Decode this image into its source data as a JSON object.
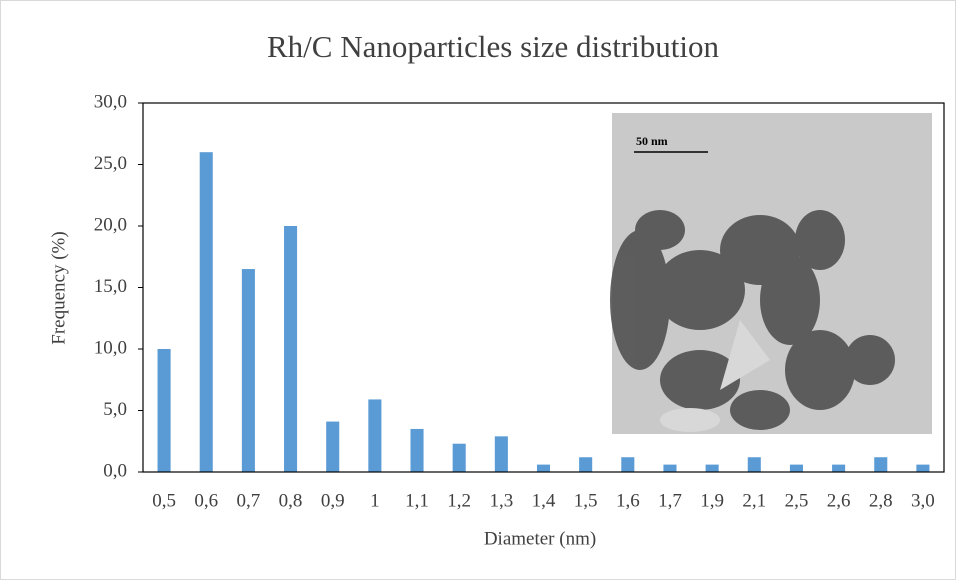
{
  "chart_data": {
    "type": "bar",
    "title": "Rh/C Nanoparticles size distribution",
    "x_label": "Diameter (nm)",
    "y_label": "Frequency (%)",
    "inset_scale_label": "50 nm",
    "categories": [
      "0,5",
      "0,6",
      "0,7",
      "0,8",
      "0,9",
      "1",
      "1,1",
      "1,2",
      "1,3",
      "1,4",
      "1,5",
      "1,6",
      "1,7",
      "1,9",
      "2,1",
      "2,5",
      "2,6",
      "2,8",
      "3,0"
    ],
    "values": [
      10.0,
      26.0,
      16.5,
      20.0,
      4.1,
      5.9,
      3.5,
      2.3,
      2.9,
      0.6,
      1.2,
      1.2,
      0.6,
      0.6,
      1.2,
      0.6,
      0.6,
      1.2,
      0.6
    ],
    "color": "#5b9bd5",
    "ylim": [
      0,
      30
    ],
    "yticks": [
      {
        "value": 0,
        "label": "0,0"
      },
      {
        "value": 5,
        "label": "5,0"
      },
      {
        "value": 10,
        "label": "10,0"
      },
      {
        "value": 15,
        "label": "15,0"
      },
      {
        "value": 20,
        "label": "20,0"
      },
      {
        "value": 25,
        "label": "25,0"
      },
      {
        "value": 30,
        "label": "30,0"
      }
    ],
    "grid": false
  }
}
